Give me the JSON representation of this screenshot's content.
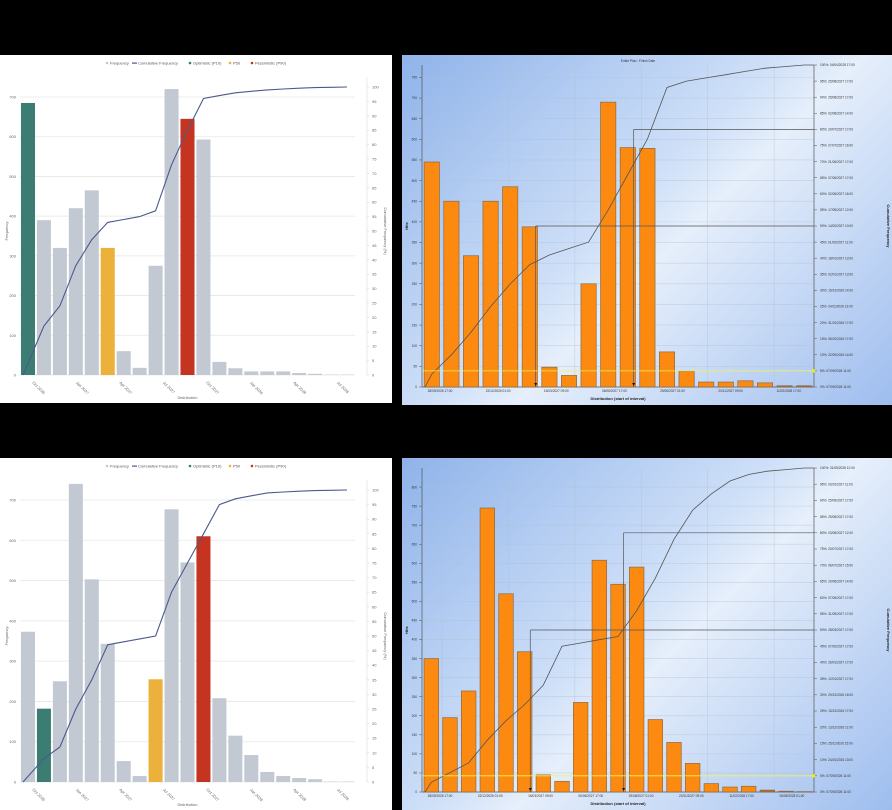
{
  "colors": {
    "frequency": "#c3c9d3",
    "cumulative": "#4a5a8c",
    "optimistic": "#3c7d73",
    "p50": "#ecb13a",
    "pessimistic": "#c53420",
    "orange_bar": "#fc8a10",
    "orange_bar_border": "#8a6a4a"
  },
  "chart_data": [
    {
      "id": "top-left",
      "type": "bar",
      "legend": [
        "Frequency",
        "Cumulative Frequency",
        "Optimistic (P10)",
        "P50",
        "Pessimistic (P90)"
      ],
      "xlabel": "Distribution",
      "ylabel": "Frequency",
      "y2label": "Cumulative Frequency (%)",
      "ylim": [
        0,
        700
      ],
      "yticks": [
        0,
        100,
        200,
        300,
        400,
        500,
        600,
        700
      ],
      "y2lim": [
        0,
        100
      ],
      "y2ticks": [
        0,
        5,
        10,
        15,
        20,
        25,
        30,
        35,
        40,
        45,
        50,
        55,
        60,
        65,
        70,
        75,
        80,
        85,
        90,
        95,
        100
      ],
      "xtick_labels": [
        "Oct 2026",
        "Jan 2027",
        "Apr 2027",
        "Jul 2027",
        "Oct 2027",
        "Jan 2028",
        "Apr 2028",
        "Jul 2028"
      ],
      "values": [
        685,
        390,
        320,
        420,
        465,
        320,
        60,
        18,
        275,
        720,
        645,
        593,
        33,
        17,
        9,
        9,
        9,
        5,
        3,
        1,
        1
      ],
      "kinds": [
        "p10",
        "f",
        "f",
        "f",
        "f",
        "p50",
        "f",
        "f",
        "f",
        "f",
        "p90",
        "f",
        "f",
        "f",
        "f",
        "f",
        "f",
        "f",
        "f",
        "f",
        "f"
      ],
      "cumulative": [
        0,
        17,
        24,
        38,
        47,
        53,
        54,
        55,
        57,
        73,
        85,
        96,
        97,
        98,
        98.5,
        99,
        99.3,
        99.6,
        99.8,
        99.9,
        100
      ],
      "grid": true,
      "legend_position": "top"
    },
    {
      "id": "top-right",
      "type": "bar",
      "title": "Entire Plan : Finish Date",
      "xlabel": "Distribution (start of interval)",
      "ylabel": "Hits",
      "y2label": "Cumulative Frequency",
      "ylim": [
        0,
        750
      ],
      "yticks": [
        0,
        50,
        100,
        150,
        200,
        250,
        300,
        350,
        400,
        450,
        500,
        550,
        600,
        650,
        700,
        750
      ],
      "xtick_labels": [
        "28/09/2026 17:00",
        "22/12/2026 01:00",
        "15/03/2027 09:00",
        "06/06/2027 17:00",
        "29/08/2027 01:00",
        "20/11/2027 09:00",
        "11/02/2028 17:00"
      ],
      "y2tick_labels": [
        "0%: 07/09/2026 11:00",
        "5%: 07/09/2026 11:00",
        "10%: 22/09/2026 14:00",
        "15%: 05/10/2026 17:00",
        "20%: 31/10/2026 17:00",
        "25%: 24/11/2026 13:00",
        "30%: 15/12/2026 14:00",
        "35%: 02/01/2027 13:00",
        "40%: 18/01/2027 13:00",
        "45%: 01/02/2027 11:00",
        "50%: 14/02/2027 10:00",
        "55%: 17/05/2027 12:00",
        "60%: 02/06/2027 16:00",
        "65%: 07/06/2027 17:00",
        "70%: 21/06/2027 17:00",
        "75%: 07/07/2027 16:00",
        "80%: 20/07/2027 17:00",
        "85%: 02/08/2027 14:00",
        "90%: 25/08/2027 17:00",
        "95%: 25/08/2027 17:00",
        "100%: 04/04/2028 17:00"
      ],
      "values": [
        545,
        450,
        318,
        450,
        485,
        388,
        48,
        28,
        250,
        690,
        580,
        578,
        85,
        38,
        12,
        12,
        15,
        10,
        3,
        3
      ],
      "cumulative": [
        4,
        10,
        17,
        25,
        32,
        38,
        41,
        43,
        45,
        55,
        66,
        77,
        93,
        95,
        96,
        97,
        98,
        99,
        99.5,
        100
      ],
      "markers": {
        "p50_line": 50,
        "p80_line": 80,
        "p5_line": 5
      }
    },
    {
      "id": "bottom-left",
      "type": "bar",
      "legend": [
        "Frequency",
        "Cumulative Frequency",
        "Optimistic (P10)",
        "P50",
        "Pessimistic (P90)"
      ],
      "xlabel": "Distribution",
      "ylabel": "Frequency",
      "y2label": "Cumulative Frequency (%)",
      "ylim": [
        0,
        700
      ],
      "yticks": [
        0,
        100,
        200,
        300,
        400,
        500,
        600,
        700
      ],
      "y2lim": [
        0,
        100
      ],
      "y2ticks": [
        0,
        5,
        10,
        15,
        20,
        25,
        30,
        35,
        40,
        45,
        50,
        55,
        60,
        65,
        70,
        75,
        80,
        85,
        90,
        95,
        100
      ],
      "xtick_labels": [
        "Oct 2026",
        "Jan 2027",
        "Apr 2027",
        "Jul 2027",
        "Oct 2027",
        "Jan 2028",
        "Apr 2028",
        "Jul 2028"
      ],
      "values": [
        373,
        182,
        250,
        740,
        503,
        343,
        52,
        15,
        255,
        677,
        545,
        610,
        208,
        115,
        67,
        25,
        15,
        10,
        7,
        1,
        1
      ],
      "kinds": [
        "f",
        "p10",
        "f",
        "f",
        "f",
        "f",
        "f",
        "f",
        "p50",
        "f",
        "f",
        "p90",
        "f",
        "f",
        "f",
        "f",
        "f",
        "f",
        "f",
        "f",
        "f"
      ],
      "cumulative": [
        0,
        8,
        12,
        25,
        35,
        47,
        48,
        49,
        50,
        65,
        75,
        85,
        95,
        97,
        98,
        99,
        99.3,
        99.6,
        99.8,
        99.9,
        100
      ],
      "grid": true,
      "legend_position": "top"
    },
    {
      "id": "bottom-right",
      "type": "bar",
      "xlabel": "Distribution (start of interval)",
      "ylabel": "Hits",
      "y2label": "Cumulative Frequency",
      "ylim": [
        0,
        850
      ],
      "yticks": [
        0,
        50,
        100,
        150,
        200,
        250,
        300,
        350,
        400,
        450,
        500,
        550,
        600,
        650,
        700,
        750,
        800
      ],
      "xtick_labels": [
        "28/09/2026 17:00",
        "22/12/2026 01:00",
        "15/03/2027 09:00",
        "06/06/2027 17:00",
        "29/08/2027 01:00",
        "20/11/2027 09:00",
        "11/02/2028 17:00",
        "06/05/2028 01:00"
      ],
      "y2tick_labels": [
        "0%: 07/09/2026 11:00",
        "5%: 07/09/2026 11:00",
        "10%: 24/10/2026 13:00",
        "15%: 25/11/2026 15:00",
        "20%: 13/12/2026 11:00",
        "25%: 15/12/2026 17:00",
        "30%: 29/12/2026 16:00",
        "35%: 12/01/2027 17:00",
        "40%: 26/01/2027 17:00",
        "45%: 07/02/2027 17:00",
        "50%: 28/03/2027 17:00",
        "55%: 31/05/2027 17:00",
        "60%: 07/06/2027 17:00",
        "65%: 20/06/2027 14:00",
        "70%: 06/07/2027 15:00",
        "75%: 20/07/2027 17:00",
        "80%: 03/08/2027 12:00",
        "85%: 25/08/2027 17:00",
        "90%: 25/09/2027 17:00",
        "95%: 03/10/2027 11:00",
        "100%: 31/05/2028 12:00"
      ],
      "values": [
        350,
        195,
        265,
        745,
        520,
        368,
        45,
        28,
        235,
        608,
        545,
        590,
        190,
        130,
        75,
        22,
        13,
        15,
        5,
        2,
        1
      ],
      "cumulative": [
        3,
        6,
        9,
        16,
        22,
        27,
        33,
        45,
        46,
        47,
        48,
        56,
        66,
        78,
        87,
        92,
        96,
        98,
        99,
        99.5,
        100
      ],
      "markers": {
        "p50_line": 50,
        "p80_line": 80,
        "p5_line": 5
      }
    }
  ]
}
